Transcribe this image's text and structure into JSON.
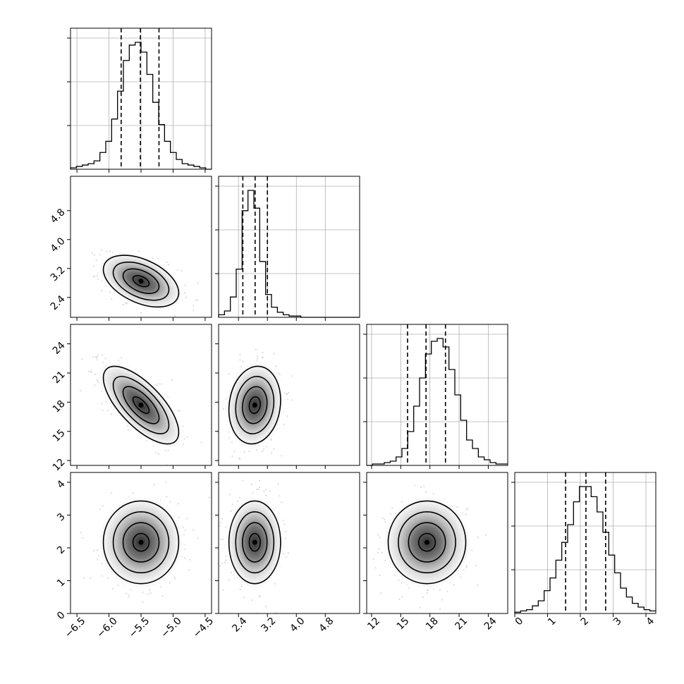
{
  "chart_data": {
    "type": "corner",
    "title": "",
    "variables": [
      {
        "index": 0,
        "range": [
          -6.6,
          -4.4
        ],
        "ticks": [
          -6.5,
          -6.0,
          -5.5,
          -5.0,
          -4.5
        ],
        "tick_labels": [
          "−6.5",
          "−6.0",
          "−5.5",
          "−5.0",
          "−4.5"
        ],
        "quantiles": [
          -5.81,
          -5.51,
          -5.22
        ],
        "mean": -5.5,
        "sd": 0.28
      },
      {
        "index": 1,
        "range": [
          1.85,
          5.75
        ],
        "ticks": [
          2.4,
          3.2,
          4.0,
          4.8
        ],
        "tick_labels": [
          "2.4",
          "3.2",
          "4.0",
          "4.8"
        ],
        "quantiles": [
          2.52,
          2.86,
          3.2
        ],
        "mean": 2.85,
        "sd": 0.34
      },
      {
        "index": 2,
        "range": [
          11.5,
          26.0
        ],
        "ticks": [
          12,
          15,
          18,
          21,
          24
        ],
        "tick_labels": [
          "12",
          "15",
          "18",
          "21",
          "24"
        ],
        "quantiles": [
          15.7,
          17.6,
          19.6
        ],
        "mean": 17.7,
        "sd": 1.9
      },
      {
        "index": 3,
        "range": [
          0,
          4.3
        ],
        "ticks": [
          0,
          1,
          2,
          3,
          4
        ],
        "tick_labels": [
          "0",
          "1",
          "2",
          "3",
          "4"
        ],
        "quantiles": [
          1.55,
          2.17,
          2.77
        ],
        "mean": 2.17,
        "sd": 0.6
      }
    ],
    "correlations": {
      "1-0": -0.45,
      "2-0": -0.7,
      "2-1": 0.12,
      "3-0": 0.0,
      "3-1": 0.0,
      "3-2": 0.0
    },
    "histograms": [
      [
        1,
        2,
        3,
        4,
        6,
        12,
        20,
        36,
        56,
        78,
        89,
        91,
        84,
        68,
        48,
        32,
        20,
        12,
        7,
        4,
        3,
        2,
        1,
        0
      ],
      [
        2,
        5,
        16,
        38,
        84,
        100,
        86,
        44,
        18,
        8,
        4,
        2,
        1,
        1,
        0,
        0,
        0,
        0,
        0,
        0,
        0,
        0,
        0,
        0
      ],
      [
        0,
        1,
        1,
        2,
        3,
        6,
        12,
        24,
        42,
        62,
        79,
        88,
        90,
        84,
        68,
        50,
        32,
        18,
        12,
        6,
        4,
        2,
        1,
        1
      ],
      [
        1,
        2,
        3,
        6,
        10,
        18,
        28,
        42,
        56,
        70,
        88,
        100,
        100,
        92,
        80,
        64,
        46,
        32,
        20,
        13,
        8,
        5,
        3,
        2
      ]
    ],
    "quantile_lines": "dashed",
    "grid": true
  }
}
